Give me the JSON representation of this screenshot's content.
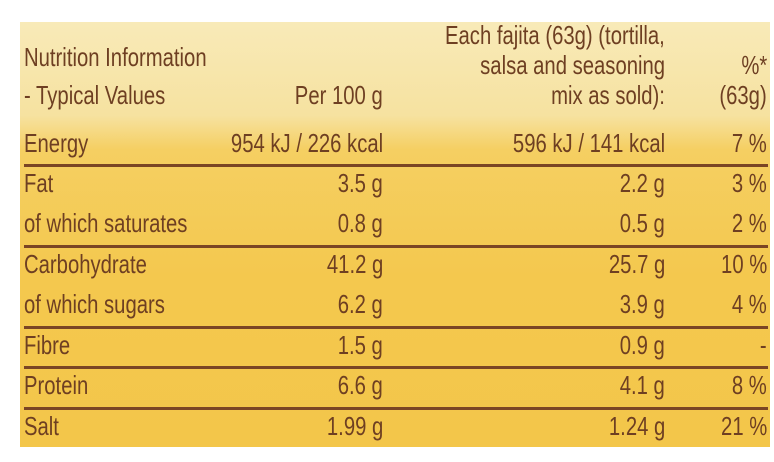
{
  "header": {
    "col0": [
      "Nutrition Information",
      " - Typical Values"
    ],
    "col1": "Per 100 g",
    "col2": [
      "Each fajita (63g) (tortilla,",
      "salsa and seasoning",
      "mix as sold):"
    ],
    "col3": [
      "%*",
      "(63g)"
    ]
  },
  "rows": [
    {
      "label": "Energy",
      "per100": "954 kJ / 226 kcal",
      "perServing": "596 kJ / 141 kcal",
      "ri": "7 %"
    },
    {
      "label": "Fat",
      "per100": "3.5 g",
      "perServing": "2.2 g",
      "ri": "3 %"
    },
    {
      "label": "of which saturates",
      "per100": "0.8 g",
      "perServing": "0.5 g",
      "ri": "2 %"
    },
    {
      "label": "Carbohydrate",
      "per100": "41.2 g",
      "perServing": "25.7 g",
      "ri": "10 %"
    },
    {
      "label": "of which sugars",
      "per100": "6.2 g",
      "perServing": "3.9 g",
      "ri": "4 %"
    },
    {
      "label": "Fibre",
      "per100": "1.5 g",
      "perServing": "0.9 g",
      "ri": "-"
    },
    {
      "label": "Protein",
      "per100": "6.6 g",
      "perServing": "4.1 g",
      "ri": "8 %"
    },
    {
      "label": "Salt",
      "per100": "1.99 g",
      "perServing": "1.24 g",
      "ri": "21 %"
    }
  ],
  "colors": {
    "text": "#6e3f22",
    "background": "#f4c84e"
  }
}
